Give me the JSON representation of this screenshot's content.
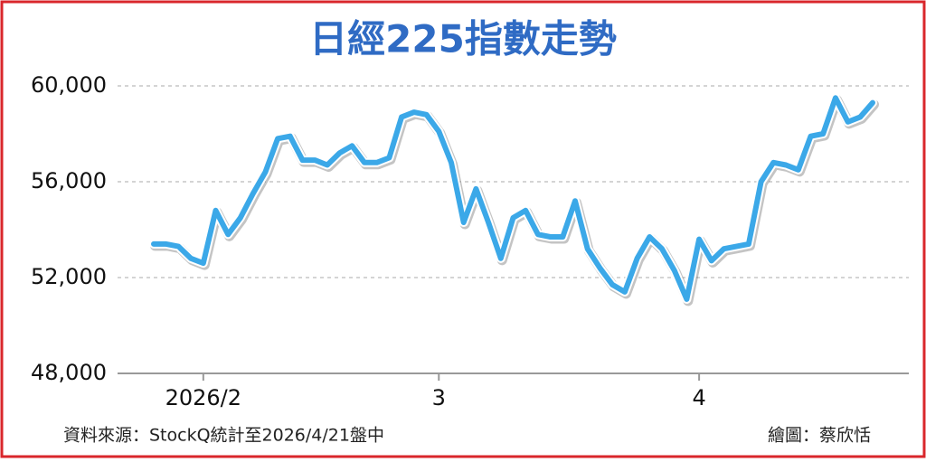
{
  "chart_data": {
    "type": "line",
    "title": "日經225指數走勢",
    "source": "資料來源：StockQ統計至2026/4/21盤中",
    "credit": "繪圖：蔡欣恬",
    "categories": [
      null,
      null,
      null,
      null,
      "2026/2",
      null,
      null,
      null,
      null,
      null,
      null,
      null,
      null,
      null,
      null,
      null,
      null,
      null,
      null,
      null,
      null,
      null,
      null,
      "3",
      null,
      null,
      null,
      null,
      null,
      null,
      null,
      null,
      null,
      null,
      null,
      null,
      null,
      null,
      null,
      null,
      null,
      null,
      null,
      null,
      "4",
      null,
      null,
      null,
      null,
      null,
      null,
      null,
      null,
      null,
      null,
      null,
      null,
      null,
      null
    ],
    "series": [
      {
        "name": "日經225指數",
        "color": "#3ba8e8",
        "values": [
          53400,
          53400,
          53300,
          52800,
          52600,
          54800,
          53800,
          54500,
          55500,
          56400,
          57800,
          57900,
          56900,
          56900,
          56700,
          57200,
          57500,
          56800,
          56800,
          57000,
          58700,
          58900,
          58800,
          58100,
          56800,
          54300,
          55700,
          54300,
          52800,
          54500,
          54800,
          53800,
          53700,
          53700,
          55200,
          53200,
          52400,
          51700,
          51400,
          52800,
          53700,
          53200,
          52300,
          51100,
          53600,
          52700,
          53200,
          53300,
          53400,
          56000,
          56800,
          56700,
          56500,
          57900,
          58000,
          59500,
          58500,
          58700,
          59300
        ]
      }
    ],
    "ylim": [
      48000,
      60000
    ],
    "yticks": [
      {
        "value": 48000,
        "label": "48,000"
      },
      {
        "value": 52000,
        "label": "52,000"
      },
      {
        "value": 56000,
        "label": "56,000"
      },
      {
        "value": 60000,
        "label": "60,000"
      }
    ],
    "grid": true
  }
}
